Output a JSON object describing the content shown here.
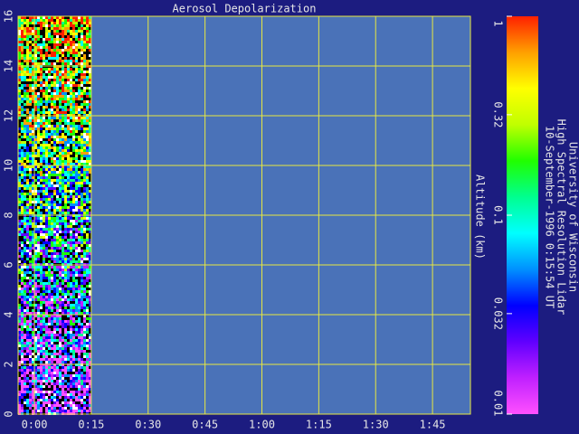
{
  "chart_data": {
    "type": "heatmap",
    "title": "Aerosol Depolarization",
    "ylabel": "Altitude (km)",
    "xlim": [
      -4.3,
      115
    ],
    "xticks": [
      {
        "value": 0,
        "label": "0:00"
      },
      {
        "value": 15,
        "label": "0:15"
      },
      {
        "value": 30,
        "label": "0:30"
      },
      {
        "value": 45,
        "label": "0:45"
      },
      {
        "value": 60,
        "label": "1:00"
      },
      {
        "value": 75,
        "label": "1:15"
      },
      {
        "value": 90,
        "label": "1:30"
      },
      {
        "value": 105,
        "label": "1:45"
      }
    ],
    "ylim": [
      0,
      16
    ],
    "yticks": [
      0,
      2,
      4,
      6,
      8,
      10,
      12,
      14,
      16
    ],
    "grid": true,
    "grid_color": "#e8e840",
    "plot_color": "#4a72b8",
    "colorbar": {
      "log": true,
      "lim": [
        0.01,
        1
      ],
      "ticks": [
        {
          "value": 1,
          "label": "1"
        },
        {
          "value": 0.32,
          "label": "0.32"
        },
        {
          "value": 0.1,
          "label": "0.1"
        },
        {
          "value": 0.032,
          "label": "0.032"
        },
        {
          "value": 0.01,
          "label": "0.01"
        }
      ],
      "colors": [
        "#ff50ff",
        "#c020ff",
        "#6000ff",
        "#0000ff",
        "#0090ff",
        "#00ffff",
        "#00ff90",
        "#20ff00",
        "#c0ff00",
        "#ffff00",
        "#ffa000",
        "#ff2000"
      ]
    },
    "credits": [
      "University of Wisconsin",
      "High Spectral Resolution Lidar",
      "10-September-1996  0:15:54 UT"
    ]
  }
}
